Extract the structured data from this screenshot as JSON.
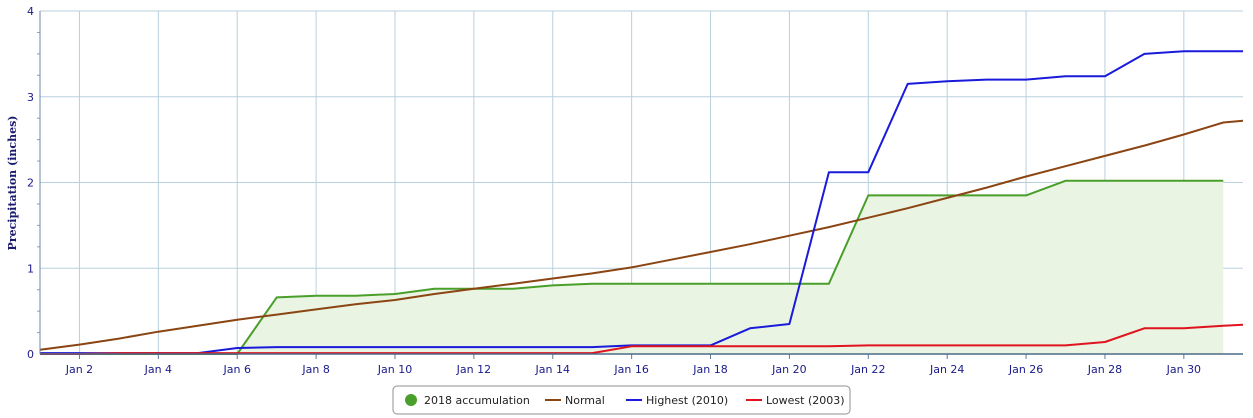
{
  "chart_data": {
    "type": "line",
    "ylabel": "Precipitation (inches)",
    "xlabel": "",
    "ylim": [
      0,
      4
    ],
    "xlim": [
      1,
      31.5
    ],
    "yticks": [
      "0",
      "1",
      "2",
      "3",
      "4"
    ],
    "xtick_labels": [
      {
        "day": 2,
        "label": "Jan 2"
      },
      {
        "day": 4,
        "label": "Jan 4"
      },
      {
        "day": 6,
        "label": "Jan 6"
      },
      {
        "day": 8,
        "label": "Jan 8"
      },
      {
        "day": 10,
        "label": "Jan 10"
      },
      {
        "day": 12,
        "label": "Jan 12"
      },
      {
        "day": 14,
        "label": "Jan 14"
      },
      {
        "day": 16,
        "label": "Jan 16"
      },
      {
        "day": 18,
        "label": "Jan 18"
      },
      {
        "day": 20,
        "label": "Jan 20"
      },
      {
        "day": 22,
        "label": "Jan 22"
      },
      {
        "day": 24,
        "label": "Jan 24"
      },
      {
        "day": 26,
        "label": "Jan 26"
      },
      {
        "day": 28,
        "label": "Jan 28"
      },
      {
        "day": 30,
        "label": "Jan 30"
      }
    ],
    "grid": true,
    "legend_position": "bottom-center",
    "series": [
      {
        "name": "2018 accumulation",
        "color": "#4a9e2a",
        "fill": "#eaf4e2",
        "area": true,
        "marker": "circle",
        "x": [
          1,
          2,
          3,
          4,
          5,
          6,
          7,
          8,
          9,
          10,
          11,
          12,
          13,
          14,
          15,
          16,
          17,
          18,
          19,
          20,
          21,
          22,
          23,
          24,
          25,
          26,
          27,
          28,
          29,
          30,
          31
        ],
        "y": [
          0,
          0,
          0,
          0,
          0,
          0,
          0.66,
          0.68,
          0.68,
          0.7,
          0.76,
          0.76,
          0.76,
          0.8,
          0.82,
          0.82,
          0.82,
          0.82,
          0.82,
          0.82,
          0.82,
          1.85,
          1.85,
          1.85,
          1.85,
          1.85,
          2.02,
          2.02,
          2.02,
          2.02,
          2.02
        ]
      },
      {
        "name": "Normal",
        "color": "#8b4513",
        "x": [
          1,
          2,
          3,
          4,
          5,
          6,
          7,
          8,
          9,
          10,
          11,
          12,
          13,
          14,
          15,
          16,
          17,
          18,
          19,
          20,
          21,
          22,
          23,
          24,
          25,
          26,
          27,
          28,
          29,
          30,
          31,
          31.5
        ],
        "y": [
          0.05,
          0.11,
          0.18,
          0.26,
          0.33,
          0.4,
          0.46,
          0.52,
          0.58,
          0.63,
          0.7,
          0.76,
          0.82,
          0.88,
          0.94,
          1.01,
          1.1,
          1.19,
          1.28,
          1.38,
          1.48,
          1.59,
          1.7,
          1.82,
          1.94,
          2.07,
          2.19,
          2.31,
          2.43,
          2.56,
          2.7,
          2.72
        ]
      },
      {
        "name": "Highest (2010)",
        "color": "#1a1adb",
        "x": [
          1,
          2,
          3,
          4,
          5,
          6,
          7,
          8,
          9,
          10,
          11,
          12,
          13,
          14,
          15,
          16,
          17,
          18,
          19,
          20,
          21,
          22,
          23,
          24,
          25,
          26,
          27,
          28,
          29,
          30,
          31,
          31.5
        ],
        "y": [
          0.01,
          0.01,
          0.01,
          0.01,
          0.01,
          0.07,
          0.08,
          0.08,
          0.08,
          0.08,
          0.08,
          0.08,
          0.08,
          0.08,
          0.08,
          0.1,
          0.1,
          0.1,
          0.3,
          0.35,
          2.12,
          2.12,
          3.15,
          3.18,
          3.2,
          3.2,
          3.24,
          3.24,
          3.5,
          3.53,
          3.53,
          3.53
        ]
      },
      {
        "name": "Lowest (2003)",
        "color": "#e0141e",
        "x": [
          1,
          2,
          3,
          4,
          5,
          6,
          7,
          8,
          9,
          10,
          11,
          12,
          13,
          14,
          15,
          16,
          17,
          18,
          19,
          20,
          21,
          22,
          23,
          24,
          25,
          26,
          27,
          28,
          29,
          30,
          31,
          31.5
        ],
        "y": [
          0,
          0,
          0.01,
          0.01,
          0.01,
          0.01,
          0.01,
          0.01,
          0.01,
          0.01,
          0.01,
          0.01,
          0.01,
          0.01,
          0.01,
          0.09,
          0.09,
          0.09,
          0.09,
          0.09,
          0.09,
          0.1,
          0.1,
          0.1,
          0.1,
          0.1,
          0.1,
          0.14,
          0.3,
          0.3,
          0.33,
          0.34
        ]
      }
    ]
  }
}
